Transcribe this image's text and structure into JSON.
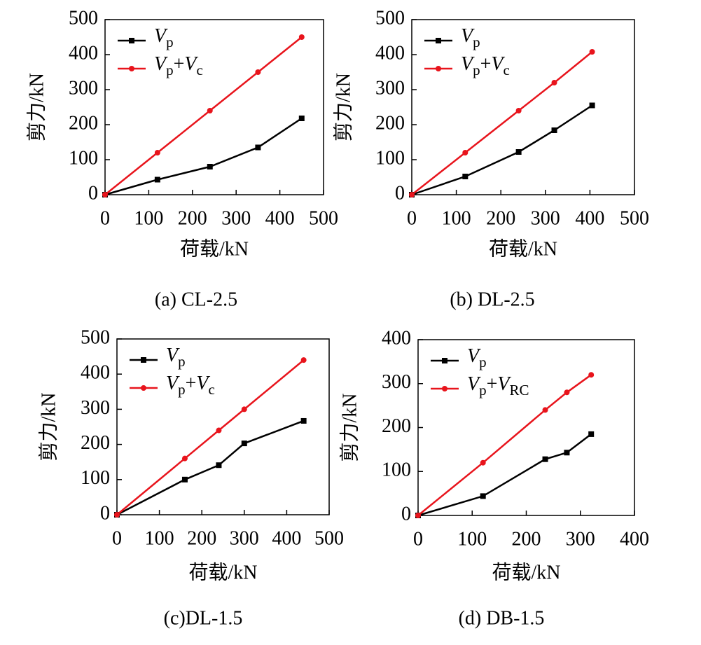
{
  "chart_data": [
    {
      "type": "line",
      "caption": "(a) CL-2.5",
      "xlabel": "荷载/kN",
      "ylabel": "剪力/kN",
      "x": [
        0,
        120,
        240,
        350,
        450
      ],
      "series": [
        {
          "name": "Vp",
          "color": "#000000",
          "marker": "square",
          "values": [
            0,
            43,
            80,
            135,
            218
          ]
        },
        {
          "name": "Vp+Vc",
          "color": "#e8141c",
          "marker": "circle",
          "values": [
            0,
            120,
            240,
            350,
            450
          ]
        }
      ],
      "xlim": [
        0,
        500
      ],
      "ylim": [
        0,
        500
      ],
      "xticks": [
        0,
        100,
        200,
        300,
        400,
        500
      ],
      "yticks": [
        0,
        100,
        200,
        300,
        400,
        500
      ],
      "legend": "upper left"
    },
    {
      "type": "line",
      "caption": "(b) DL-2.5",
      "xlabel": "荷载/kN",
      "ylabel": "剪力/kN",
      "x": [
        0,
        120,
        240,
        320,
        405
      ],
      "series": [
        {
          "name": "Vp",
          "color": "#000000",
          "marker": "square",
          "values": [
            0,
            52,
            122,
            184,
            255
          ]
        },
        {
          "name": "Vp+Vc",
          "color": "#e8141c",
          "marker": "circle",
          "values": [
            0,
            120,
            240,
            320,
            408
          ]
        }
      ],
      "xlim": [
        0,
        500
      ],
      "ylim": [
        0,
        500
      ],
      "xticks": [
        0,
        100,
        200,
        300,
        400,
        500
      ],
      "yticks": [
        0,
        100,
        200,
        300,
        400,
        500
      ],
      "legend": "upper left"
    },
    {
      "type": "line",
      "caption": "(c)DL-1.5",
      "xlabel": "荷载/kN",
      "ylabel": "剪力/kN",
      "x": [
        0,
        160,
        240,
        300,
        440
      ],
      "series": [
        {
          "name": "Vp",
          "color": "#000000",
          "marker": "square",
          "values": [
            0,
            100,
            141,
            203,
            267
          ]
        },
        {
          "name": "Vp+Vc",
          "color": "#e8141c",
          "marker": "circle",
          "values": [
            0,
            160,
            240,
            300,
            440
          ]
        }
      ],
      "xlim": [
        0,
        500
      ],
      "ylim": [
        0,
        500
      ],
      "xticks": [
        0,
        100,
        200,
        300,
        400,
        500
      ],
      "yticks": [
        0,
        100,
        200,
        300,
        400,
        500
      ],
      "legend": "upper left"
    },
    {
      "type": "line",
      "caption": "(d) DB-1.5",
      "xlabel": "荷载/kN",
      "ylabel": "剪力/kN",
      "x": [
        0,
        120,
        235,
        275,
        320
      ],
      "series": [
        {
          "name": "Vp",
          "color": "#000000",
          "marker": "square",
          "values": [
            0,
            44,
            128,
            143,
            185
          ]
        },
        {
          "name": "Vp+VRC",
          "color": "#e8141c",
          "marker": "circle",
          "values": [
            0,
            120,
            240,
            280,
            320
          ]
        }
      ],
      "xlim": [
        0,
        400
      ],
      "ylim": [
        0,
        400
      ],
      "xticks": [
        0,
        100,
        200,
        300,
        400
      ],
      "yticks": [
        0,
        100,
        200,
        300,
        400
      ],
      "legend": "upper left"
    }
  ]
}
